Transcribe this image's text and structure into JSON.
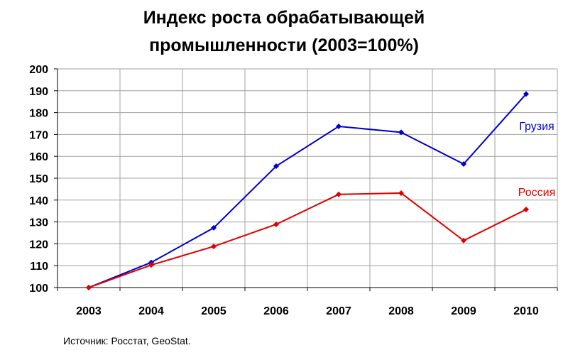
{
  "title_lines": [
    "Индекс роста обрабатывающей",
    "промышленности (2003=100%)"
  ],
  "source": "Источник: Росстат, GeoStat.",
  "chart_data": {
    "type": "line",
    "title": "Индекс роста обрабатывающей промышленности (2003=100%)",
    "xlabel": "",
    "ylabel": "",
    "x": [
      "2003",
      "2004",
      "2005",
      "2006",
      "2007",
      "2008",
      "2009",
      "2010"
    ],
    "ylim": [
      100,
      200
    ],
    "yticks": [
      100,
      110,
      120,
      130,
      140,
      150,
      160,
      170,
      180,
      190,
      200
    ],
    "grid": true,
    "legend": "inline labels at right",
    "series": [
      {
        "name": "Грузия",
        "color": "#0000cc",
        "values": [
          100,
          111.5,
          127.3,
          155.5,
          173.7,
          171,
          156.5,
          188.5
        ]
      },
      {
        "name": "Россия",
        "color": "#e00000",
        "values": [
          100,
          110.3,
          118.8,
          128.9,
          142.6,
          143.2,
          121.5,
          135.7
        ]
      }
    ]
  }
}
